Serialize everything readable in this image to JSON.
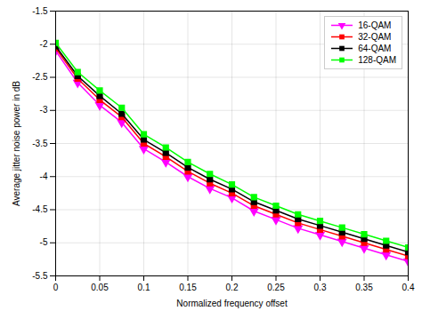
{
  "chart_data": {
    "type": "line",
    "xlabel": "Normalized frequency offset",
    "ylabel": "Average jitter noise power in dB",
    "x": [
      0,
      0.025,
      0.05,
      0.075,
      0.1,
      0.125,
      0.15,
      0.175,
      0.2,
      0.225,
      0.25,
      0.275,
      0.3,
      0.325,
      0.35,
      0.375,
      0.4
    ],
    "series": [
      {
        "name": "16-QAM",
        "color": "#ff00ff",
        "marker": "triangle_down",
        "values": [
          -2.1,
          -2.58,
          -2.92,
          -3.18,
          -3.58,
          -3.78,
          -4.0,
          -4.18,
          -4.32,
          -4.52,
          -4.65,
          -4.78,
          -4.88,
          -4.98,
          -5.08,
          -5.18,
          -5.28
        ]
      },
      {
        "name": "32-QAM",
        "color": "#ff0000",
        "marker": "square",
        "values": [
          -2.06,
          -2.52,
          -2.84,
          -3.1,
          -3.5,
          -3.7,
          -3.92,
          -4.1,
          -4.25,
          -4.44,
          -4.57,
          -4.7,
          -4.8,
          -4.9,
          -5.0,
          -5.1,
          -5.2
        ]
      },
      {
        "name": "64-QAM",
        "color": "#000000",
        "marker": "square",
        "values": [
          -2.03,
          -2.48,
          -2.78,
          -3.05,
          -3.44,
          -3.64,
          -3.86,
          -4.04,
          -4.19,
          -4.38,
          -4.51,
          -4.64,
          -4.74,
          -4.84,
          -4.94,
          -5.04,
          -5.14
        ]
      },
      {
        "name": "128-QAM",
        "color": "#00ff00",
        "marker": "square",
        "values": [
          -1.98,
          -2.42,
          -2.7,
          -2.96,
          -3.36,
          -3.56,
          -3.78,
          -3.96,
          -4.12,
          -4.31,
          -4.44,
          -4.57,
          -4.67,
          -4.77,
          -4.87,
          -4.97,
          -5.07
        ]
      }
    ],
    "xlim": [
      0,
      0.4
    ],
    "ylim": [
      -5.5,
      -1.5
    ],
    "xticks": [
      0,
      0.05,
      0.1,
      0.15,
      0.2,
      0.25,
      0.3,
      0.35,
      0.4
    ],
    "yticks": [
      -5.5,
      -5,
      -4.5,
      -4,
      -3.5,
      -3,
      -2.5,
      -2,
      -1.5
    ],
    "grid": true,
    "legend": "upper right"
  }
}
